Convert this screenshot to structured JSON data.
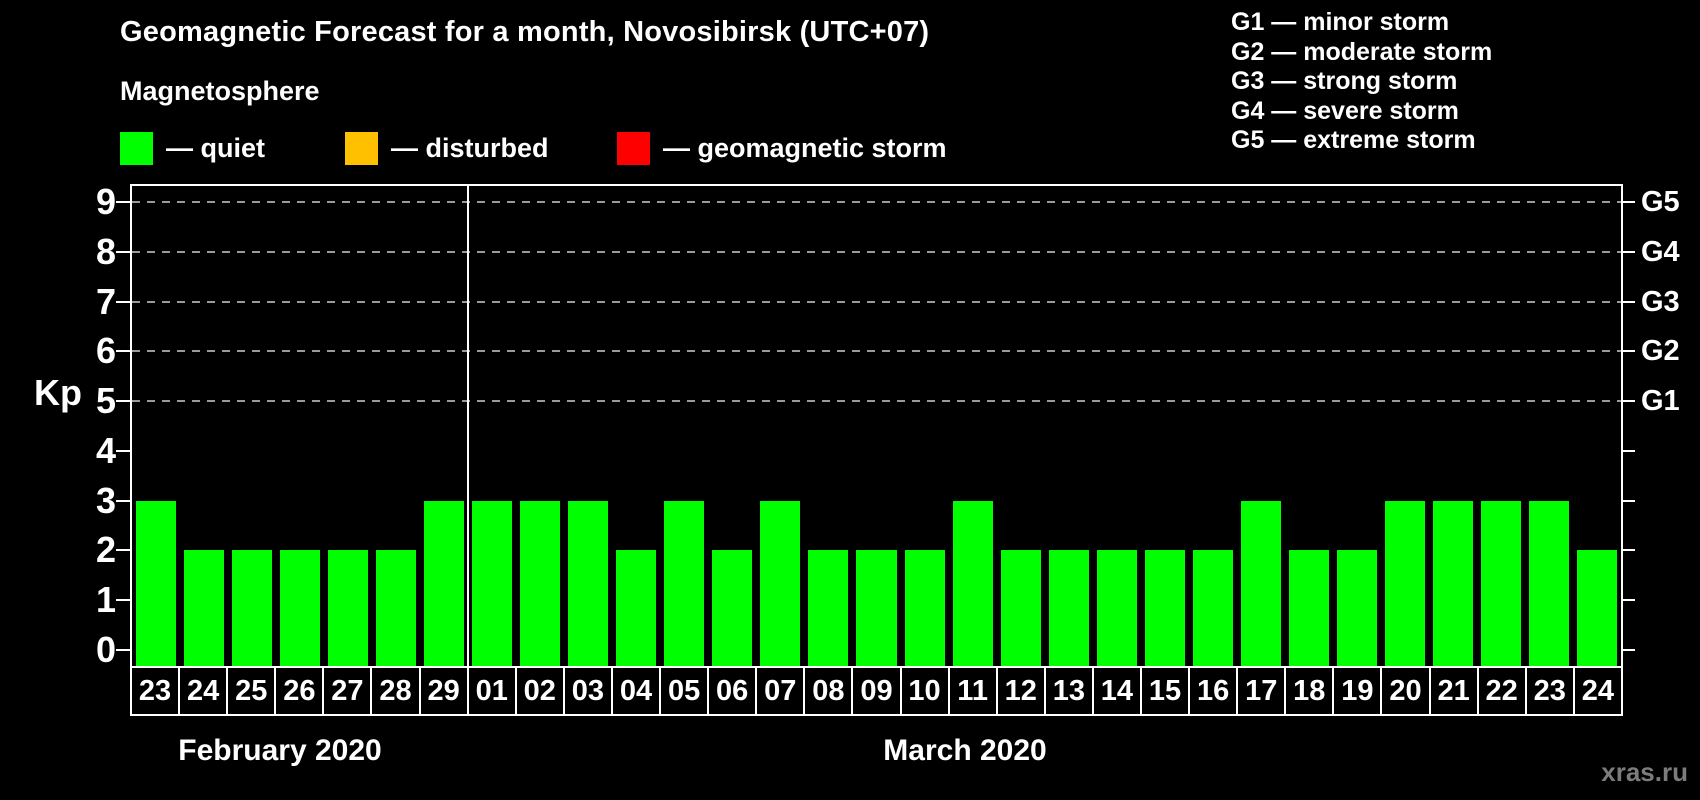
{
  "header": {
    "title": "Geomagnetic Forecast for a month, Novosibirsk (UTC+07)",
    "magnetosphere_label": "Magnetosphere"
  },
  "legend": {
    "items": [
      {
        "id": "quiet",
        "label": "— quiet",
        "color": "#00ff00"
      },
      {
        "id": "disturbed",
        "label": "— disturbed",
        "color": "#ffc000"
      },
      {
        "id": "storm",
        "label": "— geomagnetic storm",
        "color": "#ff0000"
      }
    ]
  },
  "storm_scale_legend": {
    "lines": [
      "G1 — minor storm",
      "G2 — moderate storm",
      "G3 — strong storm",
      "G4 — severe storm",
      "G5 — extreme storm"
    ]
  },
  "watermark": "xras.ru",
  "chart_data": {
    "type": "bar",
    "title": "Geomagnetic Forecast for a month, Novosibirsk (UTC+07)",
    "ylabel": "Kp",
    "ylim": [
      0,
      9
    ],
    "y_ticks": [
      0,
      1,
      2,
      3,
      4,
      5,
      6,
      7,
      8,
      9
    ],
    "grid": "dashed horizontal lines at storm levels only",
    "grid_levels_kp": [
      5,
      6,
      7,
      8,
      9
    ],
    "right_axis": [
      {
        "label": "G1",
        "kp": 5
      },
      {
        "label": "G2",
        "kp": 6
      },
      {
        "label": "G3",
        "kp": 7
      },
      {
        "label": "G4",
        "kp": 8
      },
      {
        "label": "G5",
        "kp": 9
      }
    ],
    "bar_color": "#00ff00",
    "legend_position": "top-left",
    "months": [
      {
        "label": "February 2020",
        "days": [
          "23",
          "24",
          "25",
          "26",
          "27",
          "28",
          "29"
        ],
        "values": [
          3,
          2,
          2,
          2,
          2,
          2,
          3
        ]
      },
      {
        "label": "March 2020",
        "days": [
          "01",
          "02",
          "03",
          "04",
          "05",
          "06",
          "07",
          "08",
          "09",
          "10",
          "11",
          "12",
          "13",
          "14",
          "15",
          "16",
          "17",
          "18",
          "19",
          "20",
          "21",
          "22",
          "23",
          "24"
        ],
        "values": [
          3,
          3,
          3,
          2,
          3,
          2,
          3,
          2,
          2,
          2,
          3,
          2,
          2,
          2,
          2,
          2,
          3,
          2,
          2,
          3,
          3,
          3,
          3,
          2
        ]
      }
    ]
  }
}
